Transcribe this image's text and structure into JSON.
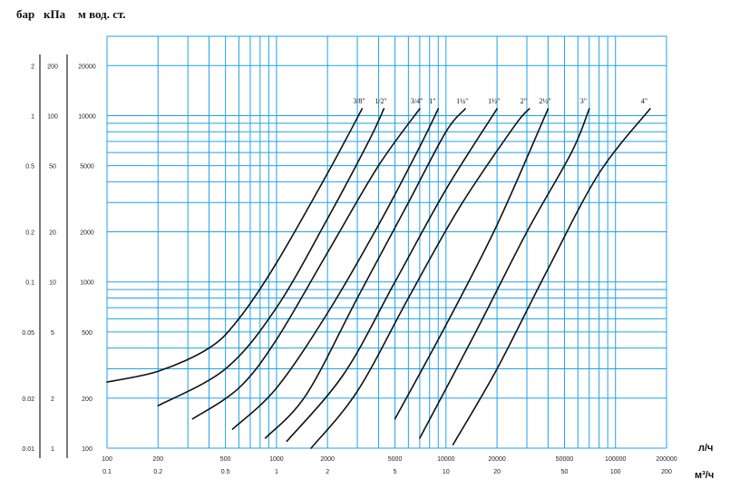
{
  "chart_data": {
    "type": "line",
    "title": "",
    "units_header": [
      "бар",
      "кПа",
      "м вод. ст."
    ],
    "x_unit_top": "л/ч",
    "x_unit_bottom": "м³/ч",
    "x_scale": "log",
    "y_scale": "log",
    "xlim": [
      100,
      200000
    ],
    "ylim": [
      100,
      30000
    ],
    "x_ticks": [
      {
        "lph": 100,
        "top": "100",
        "bottom": "0.1"
      },
      {
        "lph": 200,
        "top": "200",
        "bottom": "0.2"
      },
      {
        "lph": 500,
        "top": "500",
        "bottom": "0.5"
      },
      {
        "lph": 1000,
        "top": "1000",
        "bottom": "1"
      },
      {
        "lph": 2000,
        "top": "2000",
        "bottom": "2"
      },
      {
        "lph": 5000,
        "top": "5000",
        "bottom": "5"
      },
      {
        "lph": 10000,
        "top": "10000",
        "bottom": "10"
      },
      {
        "lph": 20000,
        "top": "20000",
        "bottom": "20"
      },
      {
        "lph": 50000,
        "top": "50000",
        "bottom": "50"
      },
      {
        "lph": 100000,
        "top": "100000",
        "bottom": "100"
      },
      {
        "lph": 200000,
        "top": "200000",
        "bottom": "200"
      }
    ],
    "y_ticks": [
      {
        "value": 20000,
        "bar": "2",
        "kpa": "200",
        "mm": "20000"
      },
      {
        "value": 10000,
        "bar": "1",
        "kpa": "100",
        "mm": "10000"
      },
      {
        "value": 5000,
        "bar": "0.5",
        "kpa": "50",
        "mm": "5000"
      },
      {
        "value": 2000,
        "bar": "0.2",
        "kpa": "20",
        "mm": "2000"
      },
      {
        "value": 1000,
        "bar": "0.1",
        "kpa": "10",
        "mm": "1000"
      },
      {
        "value": 500,
        "bar": "0.05",
        "kpa": "5",
        "mm": "500"
      },
      {
        "value": 200,
        "bar": "0.02",
        "kpa": "2",
        "mm": "200"
      },
      {
        "value": 100,
        "bar": "0.01",
        "kpa": "1",
        "mm": "100"
      }
    ],
    "grid_x": [
      100,
      200,
      300,
      400,
      500,
      600,
      700,
      800,
      900,
      1000,
      2000,
      3000,
      4000,
      5000,
      6000,
      7000,
      8000,
      9000,
      10000,
      20000,
      30000,
      40000,
      50000,
      60000,
      70000,
      80000,
      90000,
      100000,
      200000
    ],
    "grid_y": [
      100,
      200,
      300,
      400,
      500,
      600,
      700,
      800,
      900,
      1000,
      2000,
      3000,
      4000,
      5000,
      6000,
      7000,
      8000,
      9000,
      10000,
      20000,
      30000
    ],
    "series": [
      {
        "name": "3/8\"",
        "points": [
          [
            100,
            250
          ],
          [
            200,
            290
          ],
          [
            400,
            400
          ],
          [
            600,
            600
          ],
          [
            1000,
            1300
          ],
          [
            2000,
            4500
          ],
          [
            3200,
            11000
          ]
        ]
      },
      {
        "name": "1/2\"",
        "points": [
          [
            200,
            180
          ],
          [
            500,
            300
          ],
          [
            1000,
            700
          ],
          [
            2000,
            2400
          ],
          [
            3500,
            7000
          ],
          [
            4300,
            11000
          ]
        ]
      },
      {
        "name": "3/4\"",
        "points": [
          [
            320,
            150
          ],
          [
            600,
            230
          ],
          [
            1000,
            450
          ],
          [
            2000,
            1500
          ],
          [
            4000,
            5000
          ],
          [
            7000,
            11000
          ]
        ]
      },
      {
        "name": "1\"",
        "points": [
          [
            550,
            130
          ],
          [
            1000,
            230
          ],
          [
            2000,
            650
          ],
          [
            4000,
            2200
          ],
          [
            7000,
            6500
          ],
          [
            9000,
            11000
          ]
        ]
      },
      {
        "name": "1¼\"",
        "points": [
          [
            860,
            115
          ],
          [
            1500,
            210
          ],
          [
            3000,
            800
          ],
          [
            6000,
            3000
          ],
          [
            10000,
            8000
          ],
          [
            13000,
            11000
          ]
        ]
      },
      {
        "name": "1½\"",
        "points": [
          [
            1150,
            110
          ],
          [
            2500,
            280
          ],
          [
            5000,
            1000
          ],
          [
            10000,
            3600
          ],
          [
            20000,
            11000
          ]
        ]
      },
      {
        "name": "2\"",
        "points": [
          [
            1600,
            100
          ],
          [
            3000,
            220
          ],
          [
            6000,
            800
          ],
          [
            12000,
            2800
          ],
          [
            25000,
            8500
          ],
          [
            31000,
            11000
          ]
        ]
      },
      {
        "name": "2½\"",
        "points": [
          [
            5000,
            150
          ],
          [
            10000,
            550
          ],
          [
            20000,
            2200
          ],
          [
            40000,
            11000
          ]
        ]
      },
      {
        "name": "3\"",
        "points": [
          [
            7000,
            115
          ],
          [
            15000,
            500
          ],
          [
            30000,
            2000
          ],
          [
            55000,
            6000
          ],
          [
            70000,
            11000
          ]
        ]
      },
      {
        "name": "4\"",
        "points": [
          [
            11000,
            105
          ],
          [
            20000,
            300
          ],
          [
            40000,
            1200
          ],
          [
            80000,
            4500
          ],
          [
            160000,
            11000
          ]
        ]
      }
    ]
  }
}
